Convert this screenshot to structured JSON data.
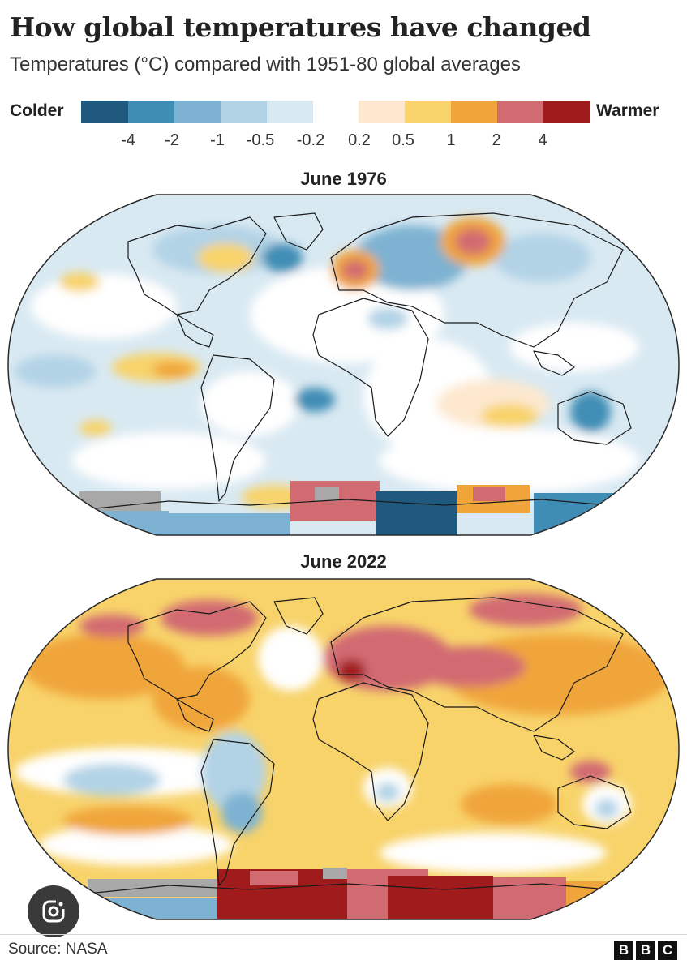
{
  "title": "How global temperatures have changed",
  "subtitle": "Temperatures (°C) compared with 1951-80 global averages",
  "legend": {
    "cold_label": "Colder",
    "warm_label": "Warmer",
    "cold_colors": [
      "#1f5a7e",
      "#3f8db5",
      "#7db2d2",
      "#b2d3e6",
      "#d9e9f2"
    ],
    "warm_colors": [
      "#fde8cf",
      "#f8d36a",
      "#f0a53a",
      "#d26a72",
      "#a01c1c"
    ],
    "ticks": [
      "-4",
      "-2",
      "-1",
      "-0.5",
      "-0.2",
      "0.2",
      "0.5",
      "1",
      "2",
      "4"
    ]
  },
  "maps": [
    {
      "title": "June 1976",
      "icon": "world-map-temperature-anomaly-1976"
    },
    {
      "title": "June 2022",
      "icon": "world-map-temperature-anomaly-2022"
    }
  ],
  "footer": {
    "source": "Source: NASA",
    "logo": [
      "B",
      "B",
      "C"
    ],
    "lens_icon": "google-lens-icon"
  }
}
